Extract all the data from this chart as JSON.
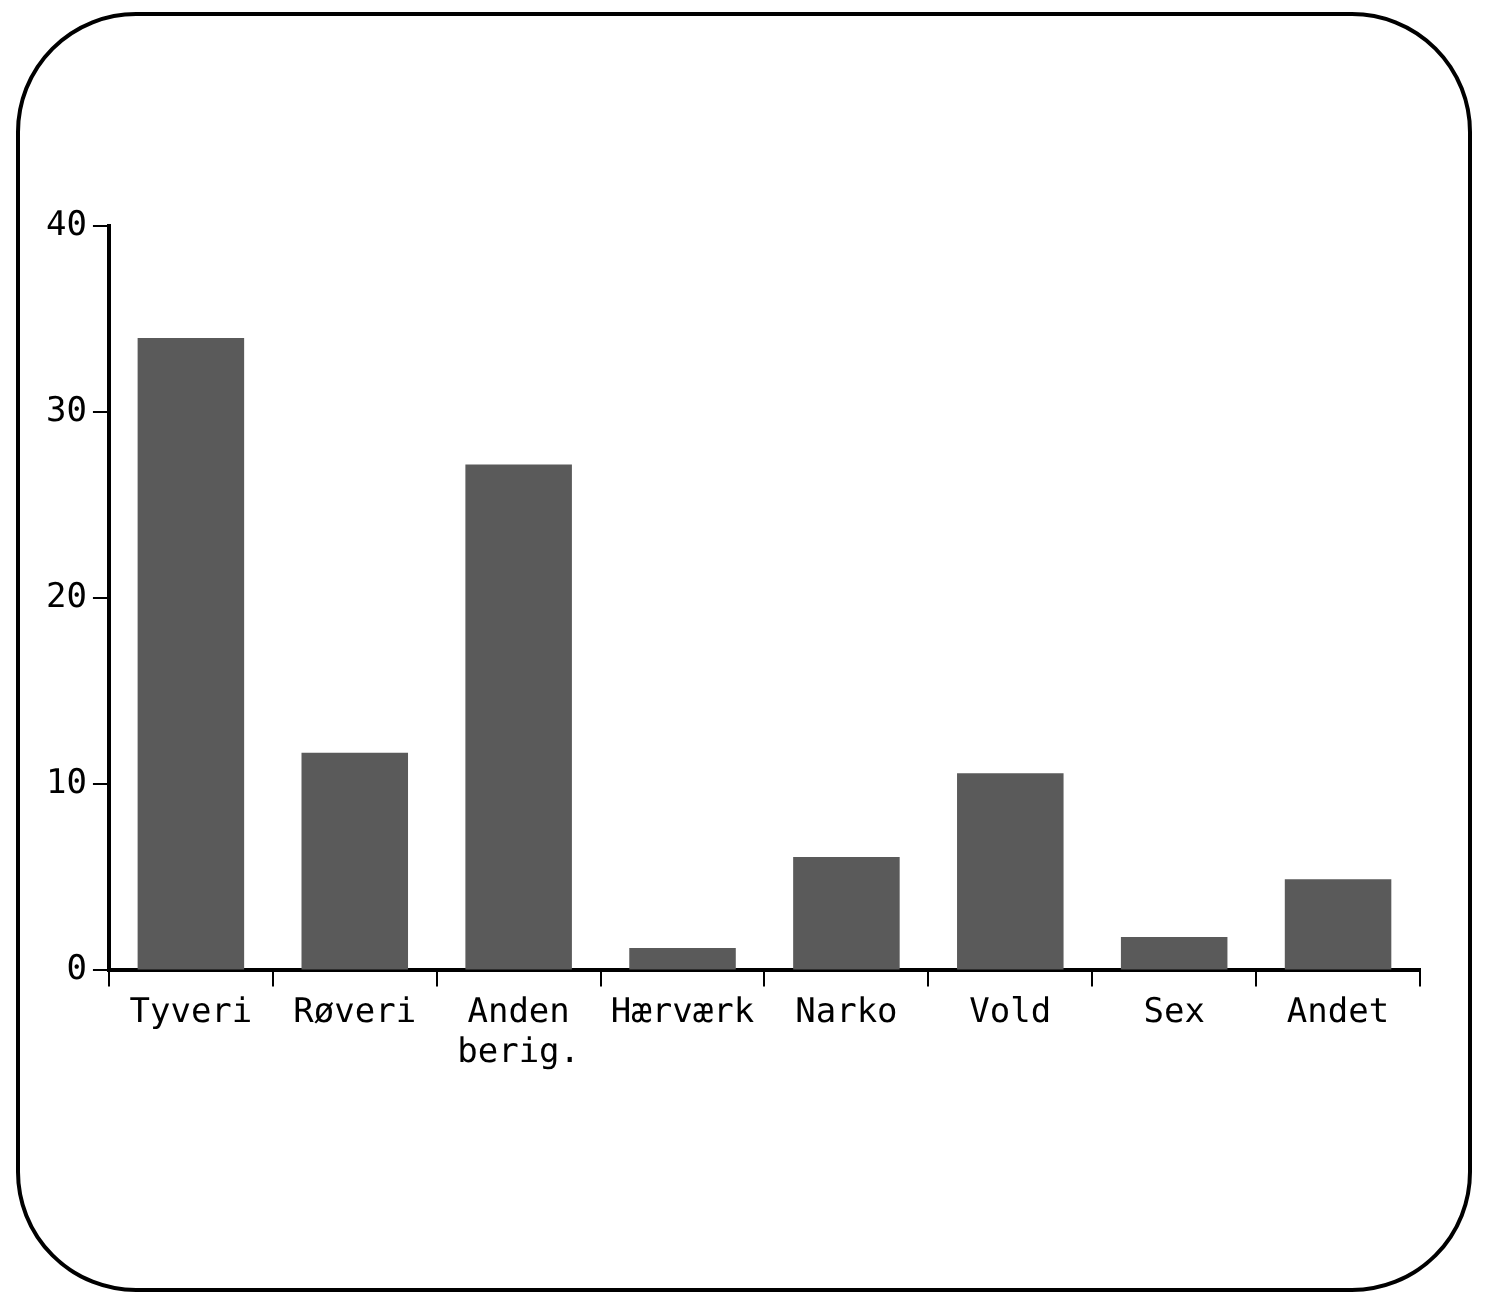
{
  "chart_data": {
    "type": "bar",
    "categories": [
      "Tyveri",
      "Røveri",
      "Anden berig.",
      "Hærværk",
      "Narko",
      "Vold",
      "Sex",
      "Andet"
    ],
    "values": [
      34,
      11.7,
      27.2,
      1.2,
      6.1,
      10.6,
      1.8,
      4.9
    ],
    "color": "#5a5a5a",
    "ylim": [
      0,
      40
    ],
    "yticks": [
      0,
      10,
      20,
      30,
      40
    ],
    "grid": false,
    "legend": false
  }
}
